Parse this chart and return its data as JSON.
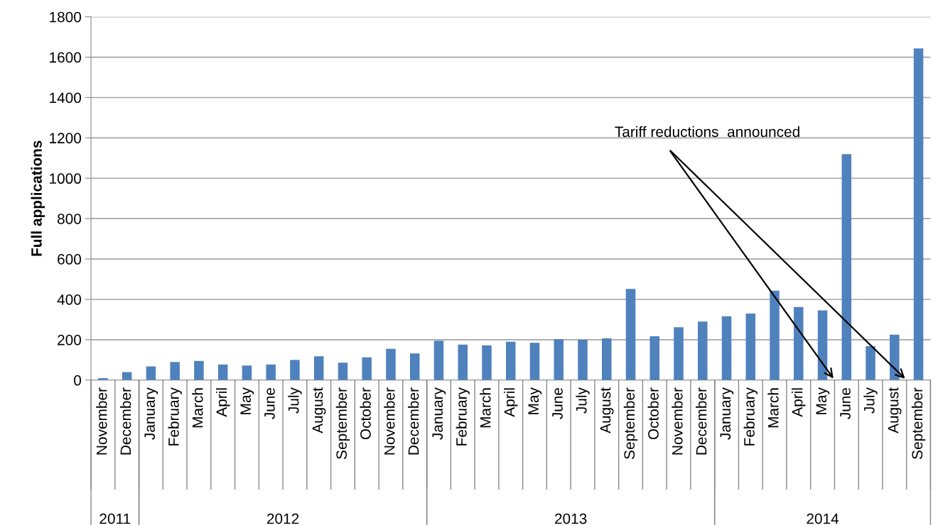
{
  "chart_data": {
    "type": "bar",
    "ylabel": "Full applications",
    "categories": [
      "November",
      "December",
      "January",
      "February",
      "March",
      "April",
      "May",
      "June",
      "July",
      "August",
      "September",
      "October",
      "November",
      "December",
      "January",
      "February",
      "March",
      "April",
      "May",
      "June",
      "July",
      "August",
      "September",
      "October",
      "November",
      "December",
      "January",
      "February",
      "March",
      "April",
      "May",
      "June",
      "July",
      "August",
      "September"
    ],
    "values": [
      10,
      40,
      68,
      90,
      95,
      77,
      72,
      77,
      100,
      118,
      86,
      113,
      155,
      132,
      195,
      176,
      172,
      190,
      185,
      203,
      200,
      207,
      452,
      217,
      262,
      290,
      316,
      330,
      443,
      362,
      345,
      1120,
      168,
      225,
      1643
    ],
    "color": "#4f81bd",
    "ylim": [
      0,
      1800
    ],
    "yticks": [
      0,
      200,
      400,
      600,
      800,
      1000,
      1200,
      1400,
      1600,
      1800
    ],
    "grid": "y",
    "annotations": [
      "2011",
      "2012",
      "2013",
      "2014",
      "Tariff reductions  announced"
    ]
  }
}
